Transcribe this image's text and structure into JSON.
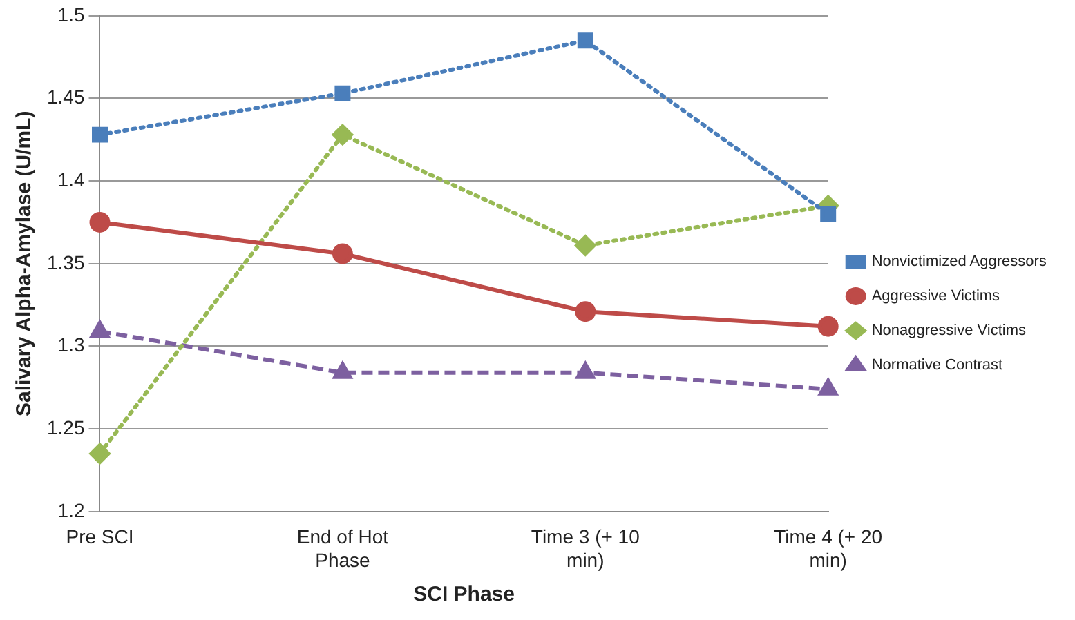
{
  "chart_data": {
    "type": "line",
    "xlabel": "SCI Phase",
    "ylabel": "Salivary Alpha-Amylase (U/mL)",
    "categories": [
      "Pre SCI",
      "End of Hot Phase",
      "Time 3 (+ 10 min)",
      "Time 4 (+ 20 min)"
    ],
    "series": [
      {
        "name": "Nonvictimized Aggressors",
        "color": "#4a7ebb",
        "values": [
          1.428,
          1.453,
          1.485,
          1.38
        ],
        "marker": "square",
        "line_style": "dotted"
      },
      {
        "name": "Aggressive Victims",
        "color": "#be4b48",
        "values": [
          1.375,
          1.356,
          1.321,
          1.312
        ],
        "marker": "circle",
        "line_style": "solid"
      },
      {
        "name": "Nonaggressive Victims",
        "color": "#98b954",
        "values": [
          1.235,
          1.428,
          1.361,
          1.385
        ],
        "marker": "diamond",
        "line_style": "dotted"
      },
      {
        "name": "Normative Contrast",
        "color": "#7d60a0",
        "values": [
          1.309,
          1.284,
          1.284,
          1.274
        ],
        "marker": "triangle",
        "line_style": "dashed"
      }
    ],
    "ylim": [
      1.2,
      1.5
    ],
    "yticks": [
      1.2,
      1.25,
      1.3,
      1.35,
      1.4,
      1.45,
      1.5
    ],
    "grid": "y",
    "legend": "right"
  }
}
